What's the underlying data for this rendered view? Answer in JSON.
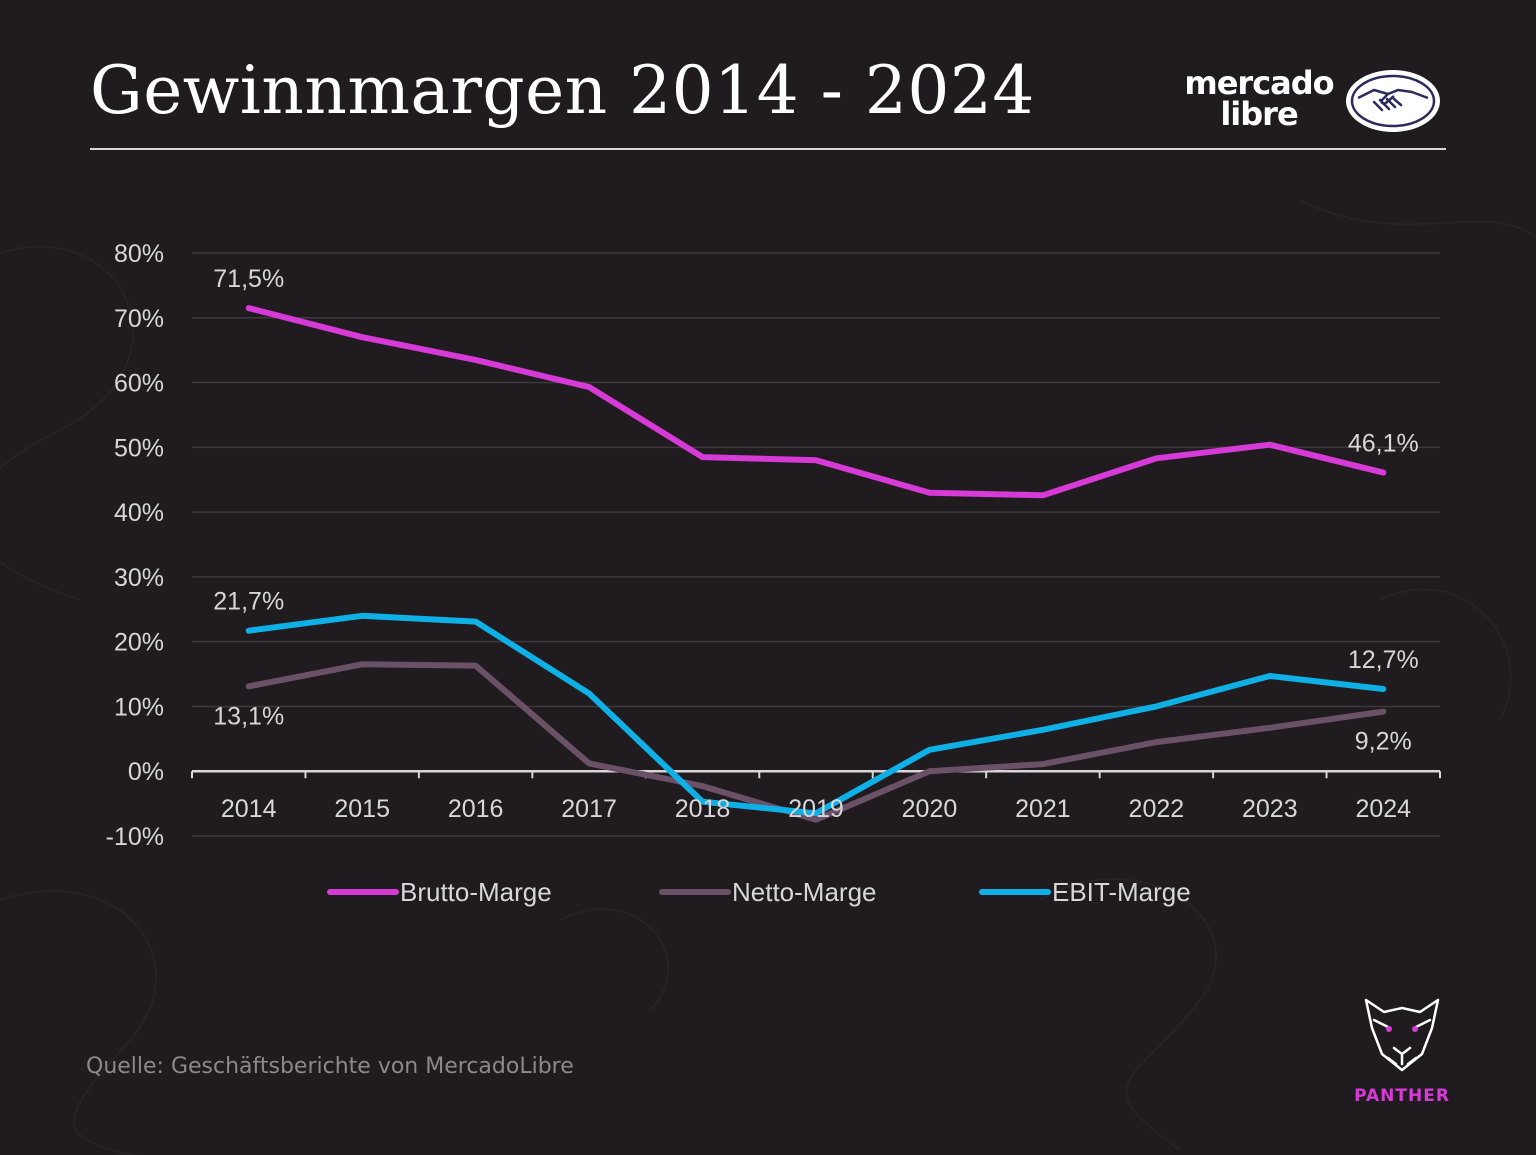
{
  "header": {
    "title": "Gewinnmargen 2014 - 2024",
    "brand_line1": "mercado",
    "brand_line2": "libre",
    "brand_icon": "handshake-icon"
  },
  "footer": {
    "source": "Quelle: Geschäftsberichte von MercadoLibre",
    "panther_label": "PANTHER",
    "panther_icon": "panther-head-icon"
  },
  "colors": {
    "background": "#1f1b1e",
    "brutto": "#d63bd8",
    "netto": "#6b5166",
    "ebit": "#0fb0e6",
    "text": "#ffffff",
    "muted_text": "#d8d6d8",
    "gridline": "#3d383c"
  },
  "chart_data": {
    "type": "line",
    "title": "Gewinnmargen 2014 - 2024",
    "xlabel": "",
    "ylabel": "",
    "categories": [
      "2014",
      "2015",
      "2016",
      "2017",
      "2018",
      "2019",
      "2020",
      "2021",
      "2022",
      "2023",
      "2024"
    ],
    "ylim": [
      -10,
      80
    ],
    "yticks": [
      -10,
      0,
      10,
      20,
      30,
      40,
      50,
      60,
      70,
      80
    ],
    "ytick_labels": [
      "-10%",
      "0%",
      "10%",
      "20%",
      "30%",
      "40%",
      "50%",
      "60%",
      "70%",
      "80%"
    ],
    "grid": true,
    "legend_position": "bottom-center",
    "series": [
      {
        "name": "Brutto-Marge",
        "color": "#d63bd8",
        "values": [
          71.5,
          67.0,
          63.5,
          59.3,
          48.5,
          48.0,
          43.0,
          42.6,
          48.3,
          50.4,
          46.1
        ]
      },
      {
        "name": "Netto-Marge",
        "color": "#6b5166",
        "values": [
          13.1,
          16.5,
          16.3,
          1.2,
          -2.3,
          -7.5,
          0.0,
          1.1,
          4.5,
          6.7,
          9.2
        ]
      },
      {
        "name": "EBIT-Marge",
        "color": "#0fb0e6",
        "values": [
          21.7,
          24.0,
          23.1,
          12.0,
          -4.7,
          -6.5,
          3.3,
          6.4,
          10.0,
          14.7,
          12.7
        ]
      }
    ],
    "annotations": [
      {
        "series": 0,
        "index": 0,
        "text": "71,5%",
        "placement": "above"
      },
      {
        "series": 0,
        "index": 10,
        "text": "46,1%",
        "placement": "above"
      },
      {
        "series": 2,
        "index": 0,
        "text": "21,7%",
        "placement": "above"
      },
      {
        "series": 1,
        "index": 0,
        "text": "13,1%",
        "placement": "below"
      },
      {
        "series": 2,
        "index": 10,
        "text": "12,7%",
        "placement": "above"
      },
      {
        "series": 1,
        "index": 10,
        "text": "9,2%",
        "placement": "below"
      }
    ]
  }
}
